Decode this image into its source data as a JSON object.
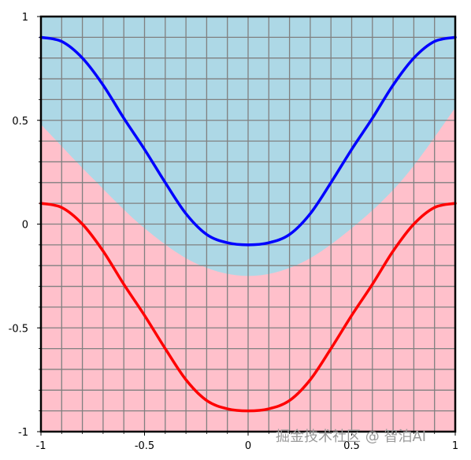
{
  "chart_data": {
    "type": "line",
    "xlim": [
      -1,
      1
    ],
    "ylim": [
      -1,
      1
    ],
    "grid": true,
    "grid_step": 0.1,
    "x_ticks": [
      -1,
      -0.5,
      0,
      0.5,
      1
    ],
    "x_tick_labels": [
      "-1",
      "-0.5",
      "0",
      "0.5",
      "1"
    ],
    "y_ticks": [
      -1,
      -0.5,
      0,
      0.5,
      1
    ],
    "y_tick_labels": [
      "-1",
      "-0.5",
      "0",
      "0.5",
      "1"
    ],
    "regions": [
      {
        "color": "#add8e6",
        "boundary_x": [
          -1,
          -0.75,
          -0.5,
          -0.25,
          0,
          0.25,
          0.5,
          0.75,
          1
        ],
        "boundary_y": [
          0.48,
          0.22,
          -0.02,
          -0.19,
          -0.25,
          -0.19,
          -0.02,
          0.22,
          0.56
        ],
        "fill": "above"
      },
      {
        "color": "#ffc0cb",
        "fill": "below"
      }
    ],
    "series": [
      {
        "color": "#0000ff",
        "x": [
          -1,
          -0.9,
          -0.8,
          -0.7,
          -0.6,
          -0.5,
          -0.4,
          -0.3,
          -0.2,
          -0.1,
          0,
          0.1,
          0.2,
          0.3,
          0.4,
          0.5,
          0.6,
          0.7,
          0.8,
          0.9,
          1
        ],
        "y": [
          0.9,
          0.88,
          0.8,
          0.67,
          0.51,
          0.36,
          0.2,
          0.05,
          -0.05,
          -0.09,
          -0.1,
          -0.09,
          -0.05,
          0.05,
          0.2,
          0.36,
          0.51,
          0.67,
          0.8,
          0.88,
          0.9
        ]
      },
      {
        "color": "#ff0000",
        "x": [
          -1,
          -0.9,
          -0.8,
          -0.7,
          -0.6,
          -0.5,
          -0.4,
          -0.3,
          -0.2,
          -0.1,
          0,
          0.1,
          0.2,
          0.3,
          0.4,
          0.5,
          0.6,
          0.7,
          0.8,
          0.9,
          1
        ],
        "y": [
          0.1,
          0.08,
          0.0,
          -0.13,
          -0.29,
          -0.44,
          -0.6,
          -0.75,
          -0.85,
          -0.89,
          -0.9,
          -0.89,
          -0.85,
          -0.75,
          -0.6,
          -0.44,
          -0.29,
          -0.13,
          0.0,
          0.08,
          0.1
        ]
      }
    ]
  },
  "watermark": "掘金技术社区 @ 智泊AI"
}
